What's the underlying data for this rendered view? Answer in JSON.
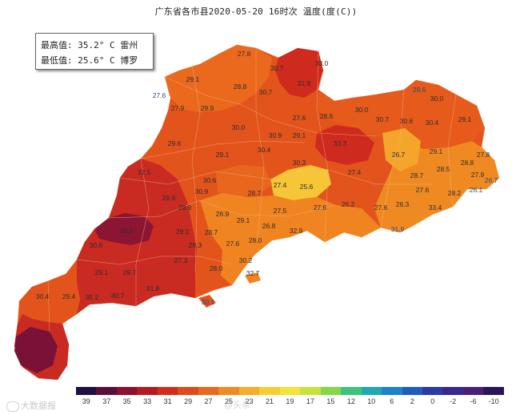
{
  "title": "广东省各市县2020-05-20 16时次 温度(度(C))",
  "info": {
    "max_line": "最高值: 35.2° C  雷州",
    "min_line": "最低值: 25.6° C  博罗"
  },
  "legend": {
    "ticks": [
      "39",
      "37",
      "35",
      "33",
      "31",
      "29",
      "27",
      "25",
      "23",
      "21",
      "19",
      "17",
      "15",
      "12",
      "10",
      "6",
      "2",
      "0",
      "-2",
      "-6",
      "-10"
    ],
    "colors": [
      "#1e1040",
      "#5a0f3a",
      "#8a1230",
      "#b51a22",
      "#d02d1c",
      "#e0491c",
      "#ea671f",
      "#f08a22",
      "#f5ad2a",
      "#f7cd33",
      "#f2e43a",
      "#c6e33c",
      "#84d64a",
      "#3fc27f",
      "#1ea9b3",
      "#1d82cc",
      "#1f5cc2",
      "#2a3aa8",
      "#3a2890",
      "#4a1f78",
      "#2a1558"
    ]
  },
  "watermark": "大数据报",
  "watermark2": "@头条",
  "map": {
    "colors": {
      "hot": "#8d1534",
      "very_hot": "#c72a22",
      "warm": "#df4d1c",
      "medium": "#e8661d",
      "mild": "#ef8420",
      "cool": "#f4a52b",
      "coolest": "#f6c636"
    },
    "labels": [
      {
        "text": "27.8"
      },
      {
        "text": "30.7"
      },
      {
        "text": "33.0"
      },
      {
        "text": "31.9"
      },
      {
        "text": "30.7"
      },
      {
        "text": "29.1"
      },
      {
        "text": "28.8"
      },
      {
        "text": "27.6"
      },
      {
        "text": "27.9"
      },
      {
        "text": "29.9"
      },
      {
        "text": "27.6"
      },
      {
        "text": "28.6"
      },
      {
        "text": "30.0"
      },
      {
        "text": "30.7"
      },
      {
        "text": "30.6"
      },
      {
        "text": "30.4"
      },
      {
        "text": "29.6"
      },
      {
        "text": "30.0"
      },
      {
        "text": "29.1"
      },
      {
        "text": "29.6"
      },
      {
        "text": "29.1"
      },
      {
        "text": "30.4"
      },
      {
        "text": "30.9"
      },
      {
        "text": "29.1"
      },
      {
        "text": "26.7"
      },
      {
        "text": "29.1"
      },
      {
        "text": "27.8"
      },
      {
        "text": "30.0"
      },
      {
        "text": "30.6"
      },
      {
        "text": "30.3"
      },
      {
        "text": "33.3"
      },
      {
        "text": "27.4"
      },
      {
        "text": "28.7"
      },
      {
        "text": "28.5"
      },
      {
        "text": "28.8"
      },
      {
        "text": "27.9"
      },
      {
        "text": "26.7"
      },
      {
        "text": "32.5"
      },
      {
        "text": "30.9"
      },
      {
        "text": "28.7"
      },
      {
        "text": "27.4"
      },
      {
        "text": "25.6"
      },
      {
        "text": "27.6"
      },
      {
        "text": "28.2"
      },
      {
        "text": "26.1"
      },
      {
        "text": "29.9"
      },
      {
        "text": "28.9"
      },
      {
        "text": "26.9"
      },
      {
        "text": "29.1"
      },
      {
        "text": "27.5"
      },
      {
        "text": "27.6"
      },
      {
        "text": "26.2"
      },
      {
        "text": "27.6"
      },
      {
        "text": "26.3"
      },
      {
        "text": "33.4"
      },
      {
        "text": "28.1"
      },
      {
        "text": "29.1"
      },
      {
        "text": "28.7"
      },
      {
        "text": "27.6"
      },
      {
        "text": "28.0"
      },
      {
        "text": "26.8"
      },
      {
        "text": "32.9"
      },
      {
        "text": "31.9"
      },
      {
        "text": "30.8"
      },
      {
        "text": "29.3"
      },
      {
        "text": "27.3"
      },
      {
        "text": "30.2"
      },
      {
        "text": "32.7"
      },
      {
        "text": "30.1"
      },
      {
        "text": "29.1"
      },
      {
        "text": "29.7"
      },
      {
        "text": "28.0"
      },
      {
        "text": "31.8"
      },
      {
        "text": "30.4"
      },
      {
        "text": "29.4"
      },
      {
        "text": "35.2"
      },
      {
        "text": "30.7"
      }
    ]
  }
}
